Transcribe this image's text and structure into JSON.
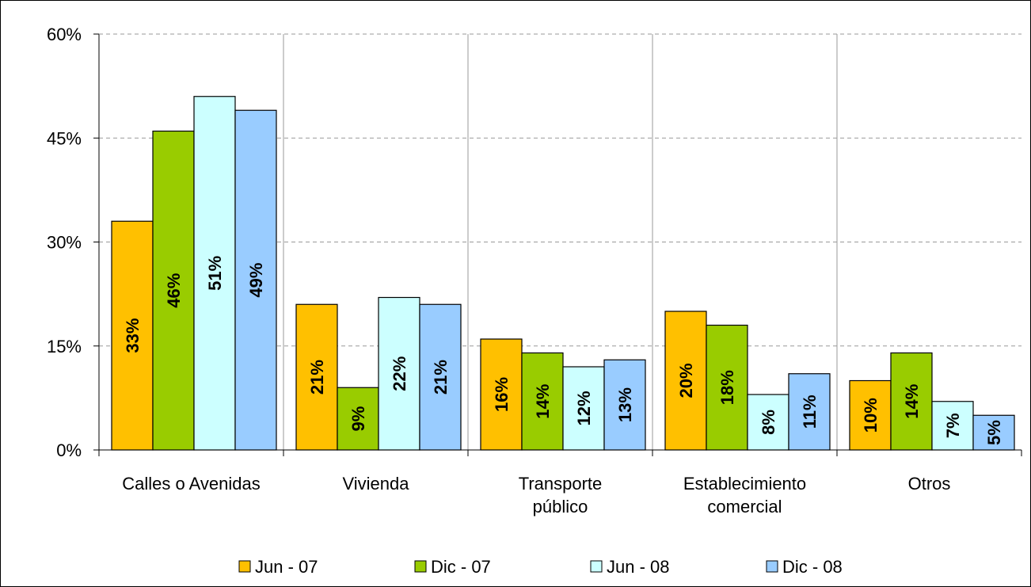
{
  "chart_data": {
    "type": "bar",
    "categories": [
      "Calles o Avenidas",
      "Vivienda",
      "Transporte público",
      "Establecimiento comercial",
      "Otros"
    ],
    "series": [
      {
        "name": "Jun - 07",
        "color": "#FFC000",
        "values": [
          33,
          21,
          16,
          20,
          10
        ],
        "value_labels": [
          "33%",
          "21%",
          "16%",
          "20%",
          "10%"
        ]
      },
      {
        "name": "Dic - 07",
        "color": "#99CC00",
        "values": [
          46,
          9,
          14,
          18,
          14
        ],
        "value_labels": [
          "46%",
          "9%",
          "14%",
          "18%",
          "14%"
        ]
      },
      {
        "name": "Jun - 08",
        "color": "#CCFFFF",
        "values": [
          51,
          22,
          12,
          8,
          7
        ],
        "value_labels": [
          "51%",
          "22%",
          "12%",
          "8%",
          "7%"
        ]
      },
      {
        "name": "Dic - 08",
        "color": "#99CCFF",
        "values": [
          49,
          21,
          13,
          11,
          5
        ],
        "value_labels": [
          "49%",
          "21%",
          "13%",
          "11%",
          "5%"
        ]
      }
    ],
    "ylim": [
      0,
      60
    ],
    "yticks": [
      {
        "value": 0,
        "label": "0%"
      },
      {
        "value": 15,
        "label": "15%"
      },
      {
        "value": 30,
        "label": "30%"
      },
      {
        "value": 45,
        "label": "45%"
      },
      {
        "value": 60,
        "label": "60%"
      }
    ],
    "grid": true,
    "legend": "bottom"
  }
}
